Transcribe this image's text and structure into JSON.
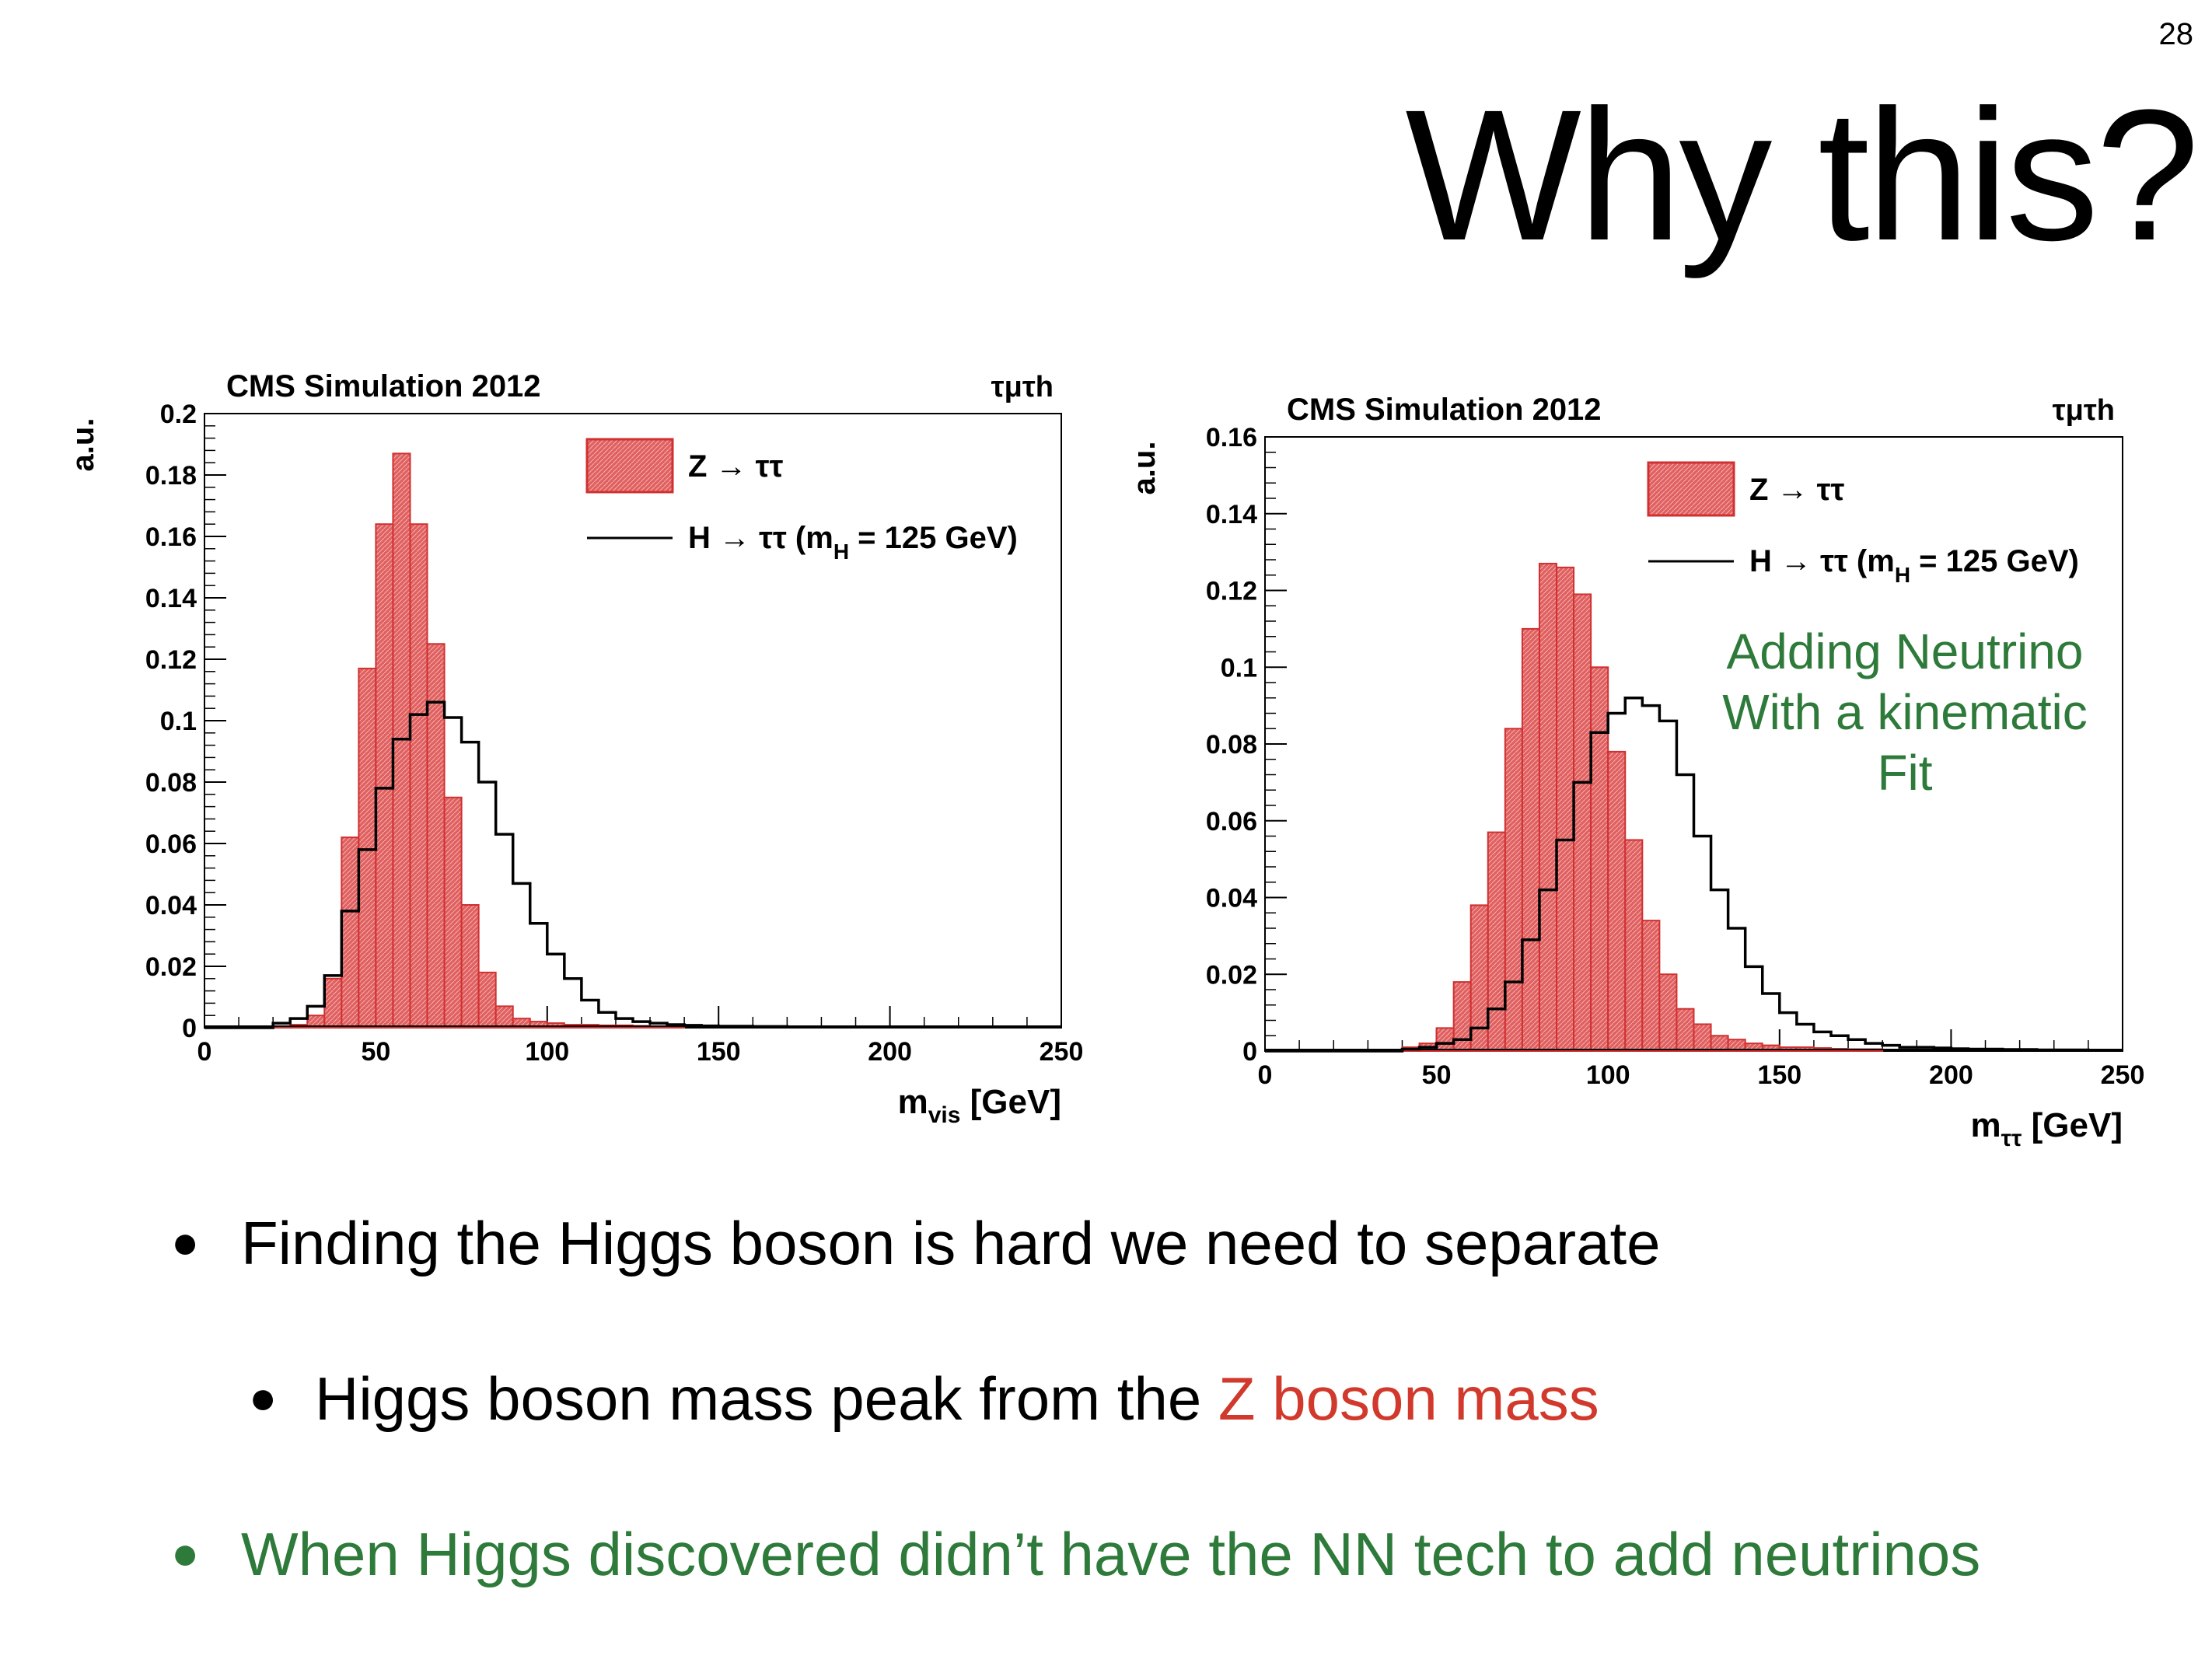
{
  "page": {
    "number": "28",
    "title": "Why this?"
  },
  "bullets": [
    {
      "text": "Finding the Higgs boson is hard we need to separate",
      "color": "#000000"
    },
    {
      "text_plain": "Higgs boson mass peak from the ",
      "text_highlight": "Z boson mass",
      "highlight_color": "#d0392b"
    },
    {
      "text": "When Higgs discovered didn’t have the NN tech to add neutrinos",
      "color": "#2e7a3a"
    }
  ],
  "colors": {
    "z_fill": "#e06060",
    "z_stroke": "#d03030",
    "h_line": "#000000",
    "annotation": "#2e7a3a"
  },
  "chart_data": [
    {
      "type": "bar",
      "histogram": true,
      "header": "CMS Simulation 2012",
      "channel_label": "τμτh",
      "ylabel": "a.u.",
      "xlabel": "m_vis [GeV]",
      "xlabel_main": "m",
      "xlabel_sub": "vis",
      "xlabel_unit": "[GeV]",
      "xlim": [
        0,
        250
      ],
      "ylim": [
        0,
        0.2
      ],
      "x_ticks": [
        "0",
        "50",
        "100",
        "150",
        "200",
        "250"
      ],
      "y_ticks": [
        "0",
        "0.02",
        "0.04",
        "0.06",
        "0.08",
        "0.1",
        "0.12",
        "0.14",
        "0.16",
        "0.18",
        "0.2"
      ],
      "bin_width": 5,
      "legend": {
        "position": "top-right",
        "z_label": "Z → ττ",
        "h_label_main": "H → ττ (m",
        "h_label_sub": "H",
        "h_label_end": " = 125 GeV)"
      },
      "series": [
        {
          "name": "Z → ττ",
          "style": "filled",
          "x_start": 20,
          "values": [
            0.0005,
            0.001,
            0.004,
            0.016,
            0.062,
            0.117,
            0.164,
            0.187,
            0.164,
            0.125,
            0.075,
            0.04,
            0.018,
            0.007,
            0.003,
            0.002,
            0.0015,
            0.001,
            0.001,
            0.0008,
            0.0008,
            0.0006,
            0.0005,
            0.0005
          ]
        },
        {
          "name": "H → ττ (mH = 125 GeV)",
          "style": "line",
          "x_start": 20,
          "values": [
            0.0015,
            0.003,
            0.007,
            0.017,
            0.038,
            0.058,
            0.078,
            0.094,
            0.102,
            0.106,
            0.101,
            0.093,
            0.08,
            0.063,
            0.047,
            0.034,
            0.024,
            0.016,
            0.009,
            0.005,
            0.003,
            0.002,
            0.0015,
            0.001,
            0.0008,
            0.0006,
            0.0005,
            0.0005,
            0.0004,
            0.0004,
            0.0003,
            0.0003,
            0.0003,
            0.0003,
            0.0002,
            0.0002,
            0.0002,
            0.0002,
            0.0002,
            0.0002,
            0.0002,
            0.0002,
            0.0002,
            0.0002,
            0.0002,
            0.0002
          ]
        }
      ]
    },
    {
      "type": "bar",
      "histogram": true,
      "header": "CMS Simulation 2012",
      "channel_label": "τμτh",
      "ylabel": "a.u.",
      "xlabel": "m_ττ [GeV]",
      "xlabel_main": "m",
      "xlabel_sub": "ττ",
      "xlabel_unit": "[GeV]",
      "xlim": [
        0,
        250
      ],
      "ylim": [
        0,
        0.16
      ],
      "x_ticks": [
        "0",
        "50",
        "100",
        "150",
        "200",
        "250"
      ],
      "y_ticks": [
        "0",
        "0.02",
        "0.04",
        "0.06",
        "0.08",
        "0.1",
        "0.12",
        "0.14",
        "0.16"
      ],
      "bin_width": 5,
      "annotation_lines": [
        "Adding Neutrino",
        "With a kinematic",
        "Fit"
      ],
      "legend": {
        "position": "top-right",
        "z_label": "Z → ττ",
        "h_label_main": "H → ττ (m",
        "h_label_sub": "H",
        "h_label_end": " = 125 GeV)"
      },
      "series": [
        {
          "name": "Z → ττ",
          "style": "filled",
          "x_start": 40,
          "values": [
            0.001,
            0.002,
            0.006,
            0.018,
            0.038,
            0.057,
            0.084,
            0.11,
            0.127,
            0.126,
            0.119,
            0.1,
            0.078,
            0.055,
            0.034,
            0.02,
            0.011,
            0.007,
            0.004,
            0.003,
            0.002,
            0.0015,
            0.001,
            0.001,
            0.0008,
            0.0006,
            0.0005,
            0.0005
          ]
        },
        {
          "name": "H → ττ (mH = 125 GeV)",
          "style": "line",
          "x_start": 40,
          "values": [
            0.0005,
            0.001,
            0.002,
            0.003,
            0.006,
            0.011,
            0.018,
            0.029,
            0.042,
            0.055,
            0.07,
            0.083,
            0.088,
            0.092,
            0.09,
            0.086,
            0.072,
            0.056,
            0.042,
            0.032,
            0.022,
            0.015,
            0.01,
            0.007,
            0.005,
            0.004,
            0.003,
            0.002,
            0.0015,
            0.001,
            0.001,
            0.0008,
            0.0006,
            0.0005,
            0.0005,
            0.0004,
            0.0004,
            0.0003,
            0.0003,
            0.0003,
            0.0002,
            0.0002
          ]
        }
      ]
    }
  ]
}
